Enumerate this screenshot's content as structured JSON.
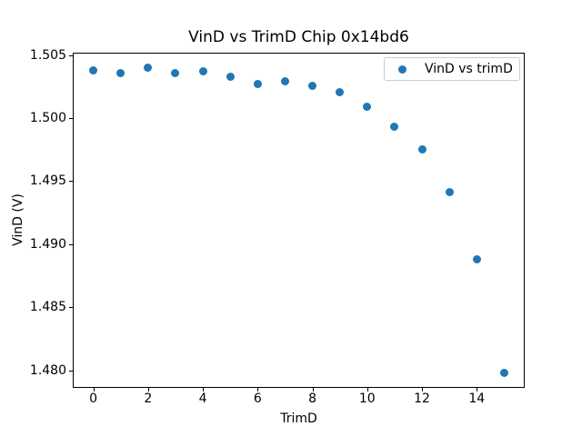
{
  "chart_data": {
    "type": "scatter",
    "title": "VinD vs TrimD Chip 0x14bd6",
    "xlabel": "TrimD",
    "ylabel": "VinD (V)",
    "legend": {
      "label": "VinD vs trimD",
      "position": "upper right"
    },
    "marker": {
      "shape": "circle",
      "color": "#1f77b4"
    },
    "x": [
      0,
      1,
      2,
      3,
      4,
      5,
      6,
      7,
      8,
      9,
      10,
      11,
      12,
      13,
      14,
      15
    ],
    "y": [
      1.5038,
      1.5036,
      1.504,
      1.5036,
      1.5037,
      1.5033,
      1.5027,
      1.5029,
      1.5026,
      1.5021,
      1.5009,
      1.4993,
      1.4975,
      1.4941,
      1.4888,
      1.4798
    ],
    "xlim": [
      -0.75,
      15.75
    ],
    "ylim": [
      1.4786,
      1.5052
    ],
    "xticks": {
      "values": [
        0,
        2,
        4,
        6,
        8,
        10,
        12,
        14
      ],
      "labels": [
        "0",
        "2",
        "4",
        "6",
        "8",
        "10",
        "12",
        "14"
      ]
    },
    "yticks": {
      "values": [
        1.48,
        1.485,
        1.49,
        1.495,
        1.5,
        1.505
      ],
      "labels": [
        "1.480",
        "1.485",
        "1.490",
        "1.495",
        "1.500",
        "1.505"
      ]
    },
    "grid": false,
    "background": "#ffffff",
    "text_color": "#000000"
  }
}
